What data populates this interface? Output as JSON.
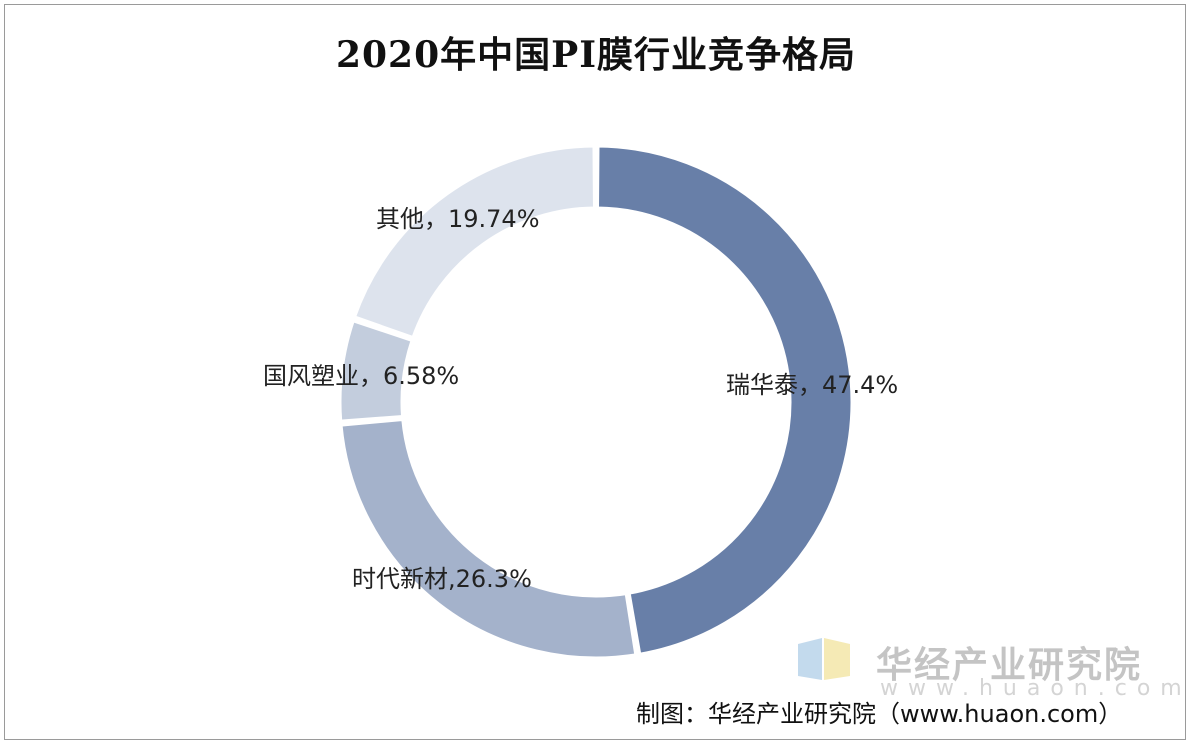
{
  "chart_data": {
    "type": "pie",
    "style": "donut",
    "title": "2020年中国PI膜行业竞争格局",
    "labels": [
      "瑞华泰",
      "时代新材",
      "国风塑业",
      "其他"
    ],
    "values": [
      47.4,
      26.3,
      6.58,
      19.74
    ],
    "value_labels": [
      "47.4%",
      "26.3%",
      "6.58%",
      "19.74%"
    ],
    "slice_label_text": [
      "瑞华泰，47.4%",
      "时代新材,26.3%",
      "国风塑业，6.58%",
      "其他，19.74%"
    ],
    "colors": [
      "#687fa8",
      "#a4b2cb",
      "#c3cddd",
      "#dde3ed"
    ],
    "start_angle": "12 o'clock",
    "direction": "clockwise"
  },
  "source": "制图：华经产业研究院（www.huaon.com）",
  "watermark": {
    "name": "华经产业研究院",
    "url": "www.huaon.com",
    "logo_colors": [
      "#b9d4ea",
      "#f3e6a8"
    ]
  }
}
